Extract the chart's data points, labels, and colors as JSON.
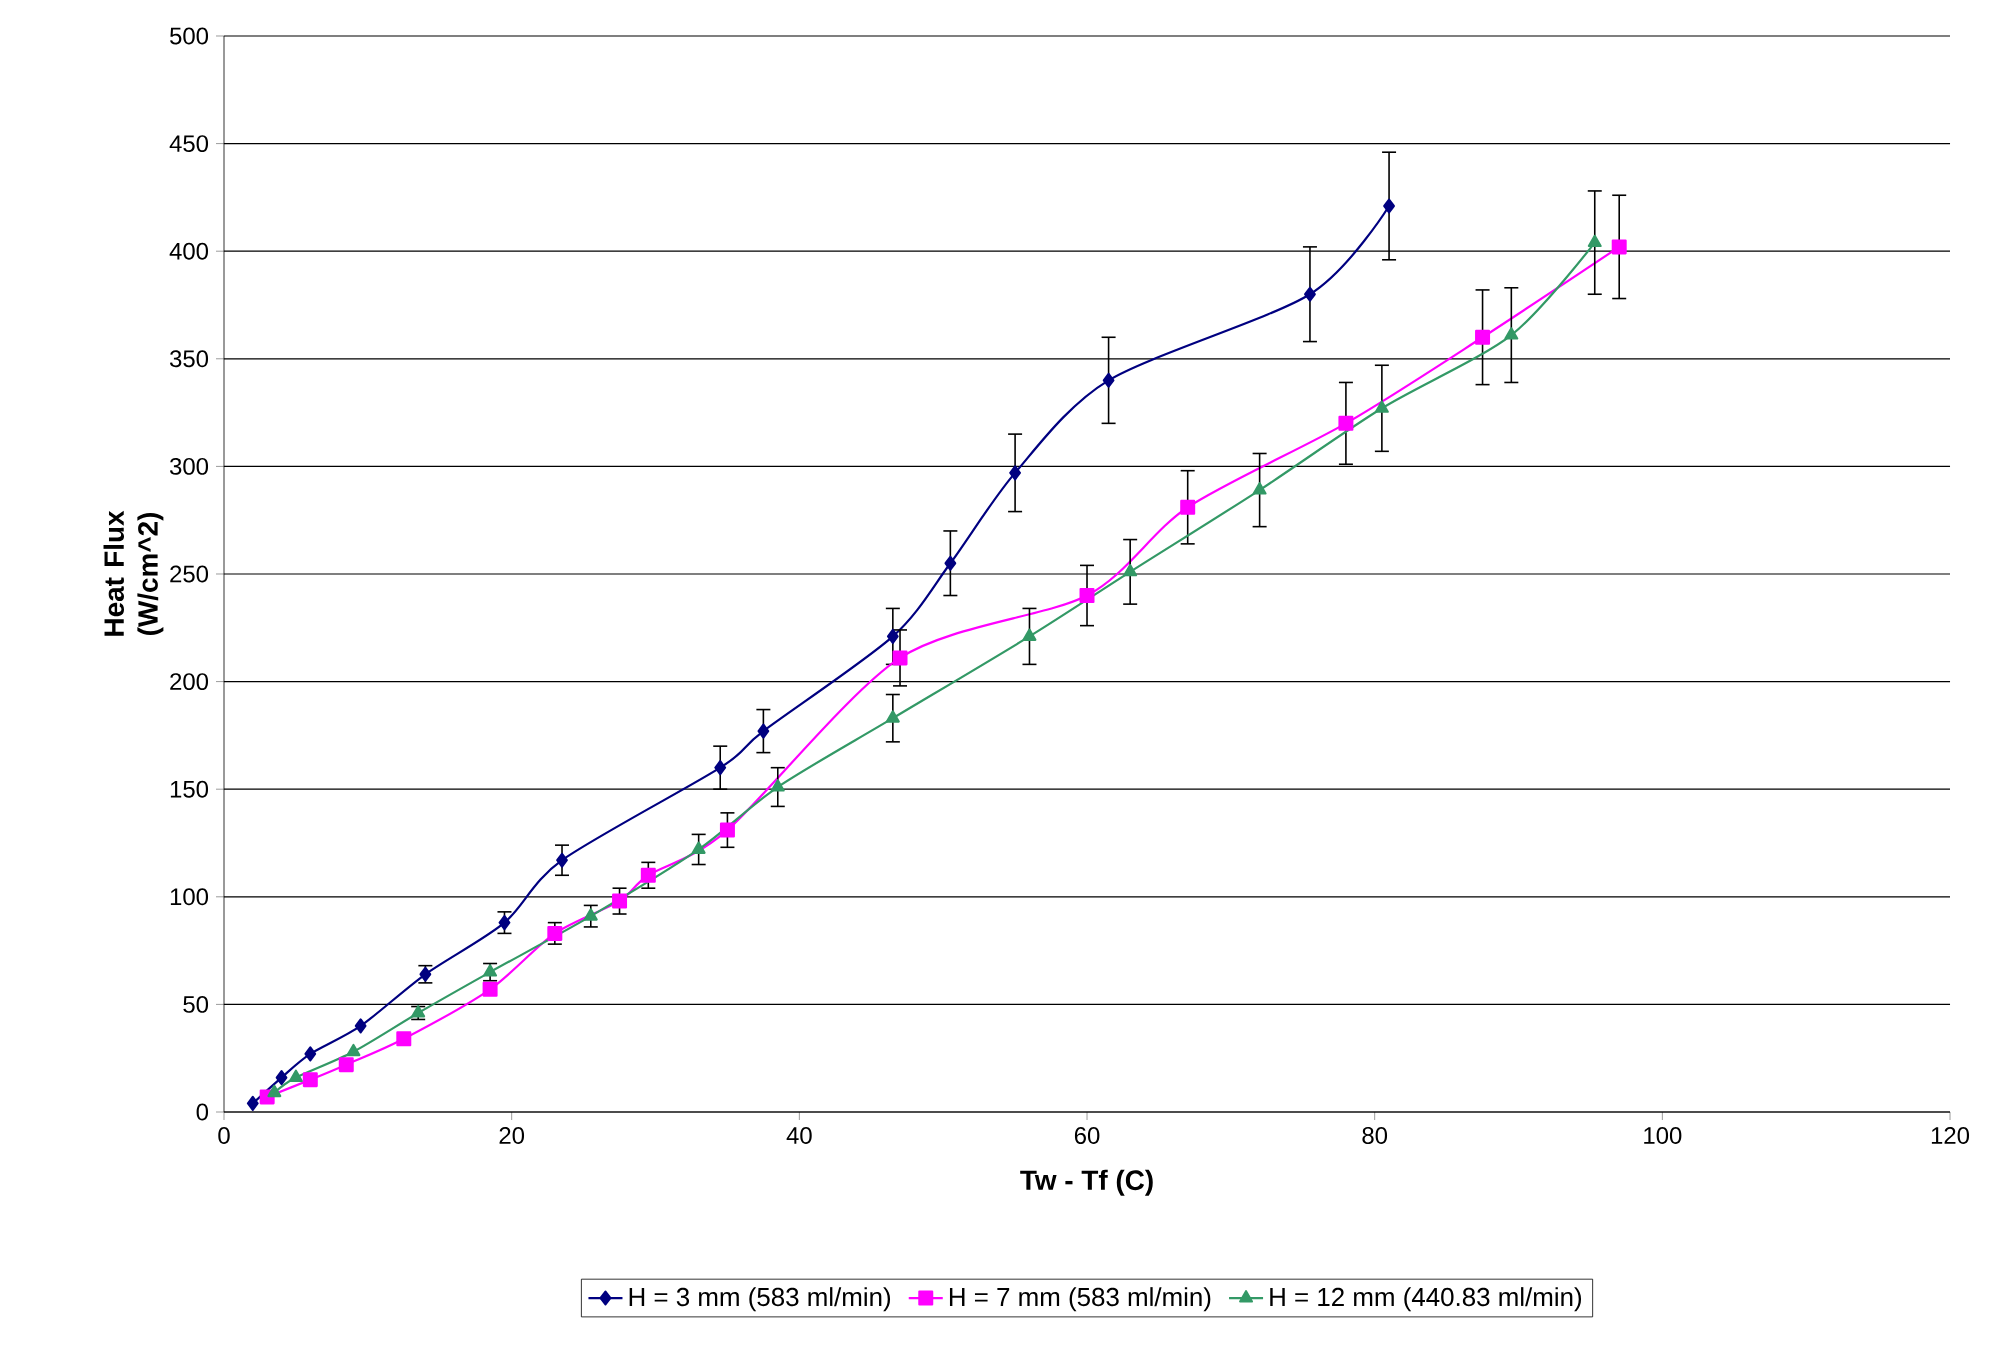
{
  "chart_data": {
    "type": "line",
    "xlabel": "Tw - Tf (C)",
    "ylabel": "Heat Flux (W/cm^2)",
    "xlim": [
      0,
      120
    ],
    "xticks": [
      0,
      20,
      40,
      60,
      80,
      100,
      120
    ],
    "ylim": [
      0,
      500
    ],
    "yticks": [
      0,
      50,
      100,
      150,
      200,
      250,
      300,
      350,
      400,
      450,
      500
    ],
    "grid": "y",
    "legend": "bottom",
    "line_style": "solid",
    "series": [
      {
        "name": "H = 3 mm (583 ml/min)",
        "color": "#000080",
        "marker": "diamond",
        "x": [
          2,
          4,
          6,
          9.5,
          14,
          19.5,
          23.5,
          34.5,
          37.5,
          46.5,
          50.5,
          55,
          61.5,
          75.5,
          81
        ],
        "values": [
          4,
          16,
          27,
          40,
          64,
          88,
          117,
          160,
          177,
          221,
          255,
          297,
          340,
          380,
          421
        ],
        "errors": [
          null,
          null,
          null,
          null,
          4,
          5,
          7,
          10,
          10,
          13,
          15,
          18,
          20,
          22,
          25
        ]
      },
      {
        "name": "H = 7 mm (583 ml/min)",
        "color": "#ff00ff",
        "marker": "square",
        "x": [
          3,
          6,
          8.5,
          12.5,
          18.5,
          23,
          27.5,
          29.5,
          35,
          47,
          60,
          67,
          78,
          87.5,
          97
        ],
        "values": [
          7,
          15,
          22,
          34,
          57,
          83,
          98,
          110,
          131,
          211,
          240,
          281,
          320,
          360,
          402
        ],
        "errors": [
          null,
          null,
          null,
          null,
          null,
          5,
          6,
          6,
          8,
          13,
          14,
          17,
          19,
          22,
          24
        ]
      },
      {
        "name": "H = 12 mm (440.83 ml/min)",
        "color": "#339966",
        "marker": "triangle",
        "x": [
          3.5,
          5,
          9,
          13.5,
          18.5,
          25.5,
          33,
          38.5,
          46.5,
          56,
          63,
          72,
          80.5,
          89.5,
          95.3
        ],
        "values": [
          9,
          16,
          28,
          46,
          65,
          91,
          122,
          151,
          183,
          221,
          251,
          289,
          327,
          361,
          404
        ],
        "errors": [
          null,
          null,
          null,
          3,
          4,
          5,
          7,
          9,
          11,
          13,
          15,
          17,
          20,
          22,
          24
        ]
      }
    ]
  }
}
